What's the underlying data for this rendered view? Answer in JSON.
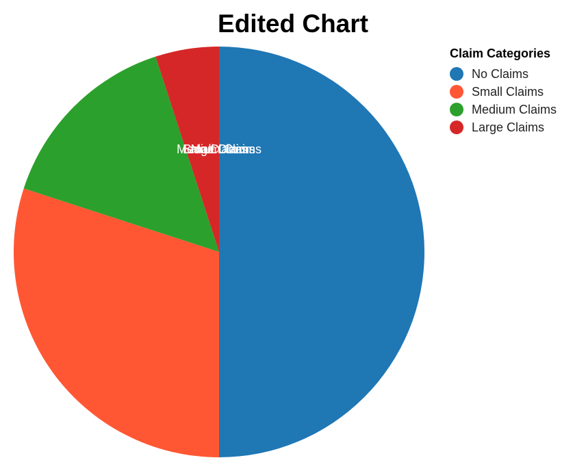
{
  "chart_data": {
    "type": "pie",
    "title": "Edited Chart",
    "legend_title": "Claim Categories",
    "legend_placement": "right",
    "categories": [
      "No Claims",
      "Small Claims",
      "Medium Claims",
      "Large Claims"
    ],
    "values": [
      50,
      30,
      15,
      5
    ],
    "colors": [
      "#1f77b4",
      "#ff5733",
      "#2ca02c",
      "#d62728"
    ]
  }
}
